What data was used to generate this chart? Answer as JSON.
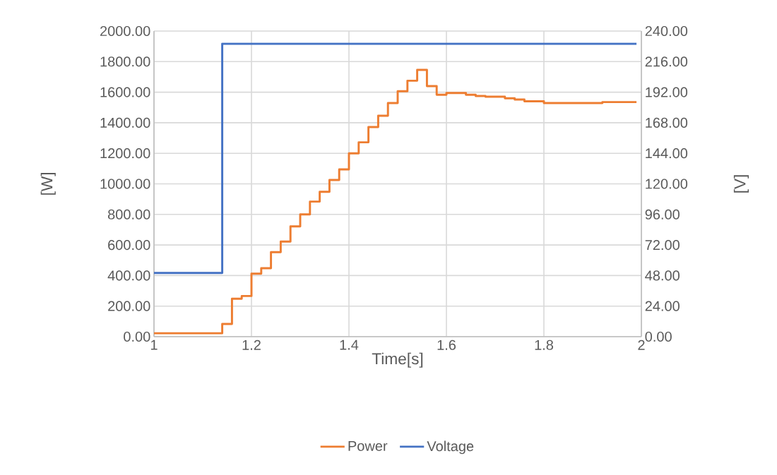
{
  "chart_data": {
    "type": "step",
    "xlabel": "Time[s]",
    "ylabel": "[W]",
    "y2label": "[V]",
    "xlim": [
      1,
      2
    ],
    "xticks": [
      1,
      1.2,
      1.4,
      1.6,
      1.8,
      2
    ],
    "ylim": [
      0,
      2000
    ],
    "yticks": [
      {
        "value": 0,
        "label": "0.00"
      },
      {
        "value": 200,
        "label": "200.00"
      },
      {
        "value": 400,
        "label": "400.00"
      },
      {
        "value": 600,
        "label": "600.00"
      },
      {
        "value": 800,
        "label": "800.00"
      },
      {
        "value": 1000,
        "label": "1000.00"
      },
      {
        "value": 1200,
        "label": "1200.00"
      },
      {
        "value": 1400,
        "label": "1400.00"
      },
      {
        "value": 1600,
        "label": "1600.00"
      },
      {
        "value": 1800,
        "label": "1800.00"
      },
      {
        "value": 2000,
        "label": "2000.00"
      }
    ],
    "y2lim": [
      0,
      240
    ],
    "y2ticks": [
      {
        "value": 0,
        "label": "0.00"
      },
      {
        "value": 24,
        "label": "24.00"
      },
      {
        "value": 48,
        "label": "48.00"
      },
      {
        "value": 72,
        "label": "72.00"
      },
      {
        "value": 96,
        "label": "96.00"
      },
      {
        "value": 120,
        "label": "120.00"
      },
      {
        "value": 144,
        "label": "144.00"
      },
      {
        "value": 168,
        "label": "168.00"
      },
      {
        "value": 192,
        "label": "192.00"
      },
      {
        "value": 216,
        "label": "216.00"
      },
      {
        "value": 240,
        "label": "240.00"
      }
    ],
    "grid": true,
    "legend": "bottom",
    "series": [
      {
        "name": "Power",
        "color": "#ed7d31",
        "x": [
          1,
          1.14,
          1.16,
          1.18,
          1.2,
          1.22,
          1.24,
          1.26,
          1.28,
          1.3,
          1.32,
          1.34,
          1.36,
          1.38,
          1.4,
          1.42,
          1.44,
          1.46,
          1.48,
          1.5,
          1.52,
          1.54,
          1.56,
          1.58,
          1.6,
          1.64,
          1.66,
          1.68,
          1.72,
          1.74,
          1.76,
          1.8,
          1.92,
          1.99
        ],
        "values": [
          22,
          83,
          248,
          266,
          412,
          448,
          553,
          622,
          722,
          800,
          884,
          948,
          1025,
          1095,
          1200,
          1272,
          1372,
          1446,
          1529,
          1606,
          1675,
          1746,
          1640,
          1583,
          1595,
          1583,
          1575,
          1570,
          1560,
          1552,
          1540,
          1529,
          1535,
          1535
        ]
      },
      {
        "name": "Voltage",
        "color": "#4472c4",
        "axis": "y2",
        "x": [
          1,
          1.14,
          1.99
        ],
        "values": [
          50,
          230,
          230
        ]
      }
    ]
  }
}
